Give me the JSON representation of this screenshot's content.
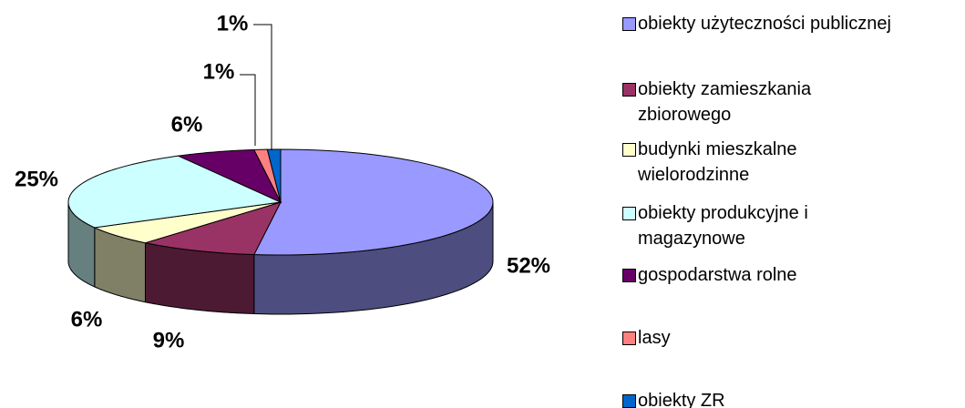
{
  "chart_data": {
    "type": "pie",
    "categories": [
      "obiekty użyteczności publicznej",
      "obiekty zamieszkania zbiorowego",
      "budynki mieszkalne wielorodzinne",
      "obiekty produkcyjne i magazynowe",
      "gospodarstwa rolne",
      "lasy",
      "obiekty ZR"
    ],
    "values": [
      52,
      9,
      6,
      25,
      6,
      1,
      1
    ],
    "value_labels": [
      "52%",
      "9%",
      "6%",
      "25%",
      "6%",
      "1%",
      "1%"
    ],
    "colors": [
      "#9999ff",
      "#993366",
      "#ffffcc",
      "#ccffff",
      "#660066",
      "#ff8080",
      "#0066cc"
    ],
    "legend": "right"
  }
}
